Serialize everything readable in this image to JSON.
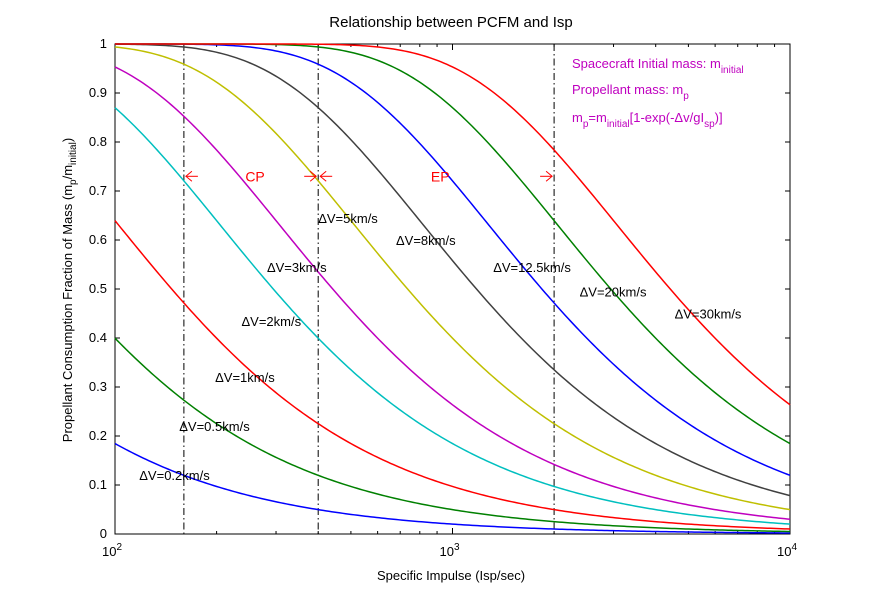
{
  "chart_data": {
    "type": "line",
    "title": "Relationship between PCFM and Isp",
    "xlabel": "Specific Impulse (Isp/sec)",
    "ylabel_parts": [
      "Propellant Consumption Fraction of Mass (m",
      "p",
      "/m",
      "initial",
      ")"
    ],
    "x_scale": "log",
    "xlim": [
      100,
      10000
    ],
    "ylim": [
      0,
      1
    ],
    "x_ticks": [
      {
        "value": 100,
        "base": "10",
        "exp": "2"
      },
      {
        "value": 1000,
        "base": "10",
        "exp": "3"
      },
      {
        "value": 10000,
        "base": "10",
        "exp": "4"
      }
    ],
    "y_ticks": [
      0,
      0.1,
      0.2,
      0.3,
      0.4,
      0.5,
      0.6,
      0.7,
      0.8,
      0.9,
      1
    ],
    "g": 9.8,
    "series": [
      {
        "name": "ΔV=0.2km/s",
        "dv": 0.2,
        "color": "#0000ff"
      },
      {
        "name": "ΔV=0.5km/s",
        "dv": 0.5,
        "color": "#008000"
      },
      {
        "name": "ΔV=1km/s",
        "dv": 1,
        "color": "#ff0000"
      },
      {
        "name": "ΔV=2km/s",
        "dv": 2,
        "color": "#00bfbf"
      },
      {
        "name": "ΔV=3km/s",
        "dv": 3,
        "color": "#bf00bf"
      },
      {
        "name": "ΔV=5km/s",
        "dv": 5,
        "color": "#bfbf00"
      },
      {
        "name": "ΔV=8km/s",
        "dv": 8,
        "color": "#404040"
      },
      {
        "name": "ΔV=12.5km/s",
        "dv": 12.5,
        "color": "#0000ff"
      },
      {
        "name": "ΔV=20km/s",
        "dv": 20,
        "color": "#008000"
      },
      {
        "name": "ΔV=30km/s",
        "dv": 30,
        "color": "#ff0000"
      }
    ],
    "curve_labels": [
      {
        "text": "ΔV=0.2km/s",
        "isp": 118,
        "y": 0.12
      },
      {
        "text": "ΔV=0.5km/s",
        "isp": 155,
        "y": 0.22
      },
      {
        "text": "ΔV=1km/s",
        "isp": 198,
        "y": 0.32
      },
      {
        "text": "ΔV=2km/s",
        "isp": 237,
        "y": 0.435
      },
      {
        "text": "ΔV=3km/s",
        "isp": 282,
        "y": 0.545
      },
      {
        "text": "ΔV=5km/s",
        "isp": 400,
        "y": 0.645
      },
      {
        "text": "ΔV=8km/s",
        "isp": 680,
        "y": 0.6
      },
      {
        "text": "ΔV=12.5km/s",
        "isp": 1320,
        "y": 0.545
      },
      {
        "text": "ΔV=20km/s",
        "isp": 2380,
        "y": 0.495
      },
      {
        "text": "ΔV=30km/s",
        "isp": 4550,
        "y": 0.45
      }
    ],
    "vertical_lines": [
      160,
      400,
      2000
    ],
    "regions": [
      {
        "label": "CP",
        "isp": 260,
        "y": 0.73
      },
      {
        "label": "EP",
        "isp": 920,
        "y": 0.73
      }
    ],
    "annotation_color": "#ff0000",
    "legend": [
      {
        "parts": [
          [
            "Spacecraft Initial mass: m",
            "n"
          ],
          [
            "initial",
            "sub"
          ]
        ]
      },
      {
        "parts": [
          [
            "Propellant mass: m",
            "n"
          ],
          [
            "p",
            "sub"
          ]
        ]
      },
      {
        "parts": [
          [
            "m",
            "n"
          ],
          [
            "p",
            "sub"
          ],
          [
            "=m",
            "n"
          ],
          [
            "initial",
            "sub"
          ],
          [
            "[1-exp(-Δv/gI",
            "n"
          ],
          [
            "sp",
            "sub"
          ],
          [
            ")]",
            "n"
          ]
        ]
      }
    ],
    "legend_color": "#bf00bf",
    "legend_position": "top-right",
    "grid": false
  }
}
